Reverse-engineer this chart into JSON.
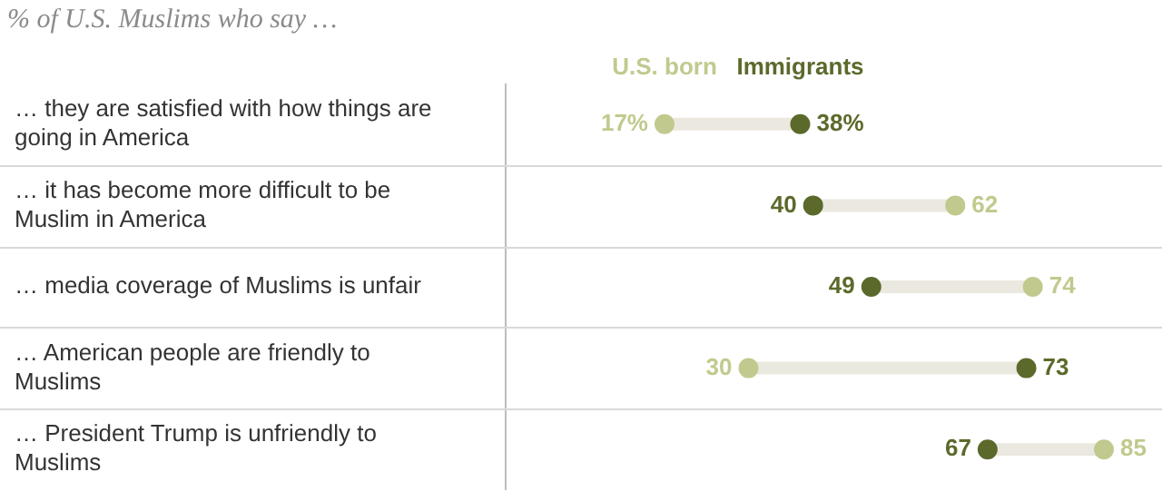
{
  "chart_data": {
    "type": "scatter",
    "orientation": "horizontal",
    "title": "% of U.S. Muslims who say …",
    "categories": [
      "… they are satisfied with how things are going in America",
      "… it has become more difficult to be Muslim in America",
      "… media coverage of Muslims is unfair",
      "… American people are friendly to Muslims",
      "… President Trump is unfriendly to Muslims"
    ],
    "series": [
      {
        "name": "U.S. born",
        "color": "#c2c98e",
        "values": [
          17,
          62,
          74,
          30,
          85
        ],
        "value_labels": [
          "17%",
          "62",
          "74",
          "30",
          "85"
        ]
      },
      {
        "name": "Immigrants",
        "color": "#5b6a2b",
        "values": [
          38,
          40,
          49,
          73,
          67
        ],
        "value_labels": [
          "38%",
          "40",
          "49",
          "73",
          "67"
        ]
      }
    ],
    "grid": "y",
    "marker": "circle"
  }
}
